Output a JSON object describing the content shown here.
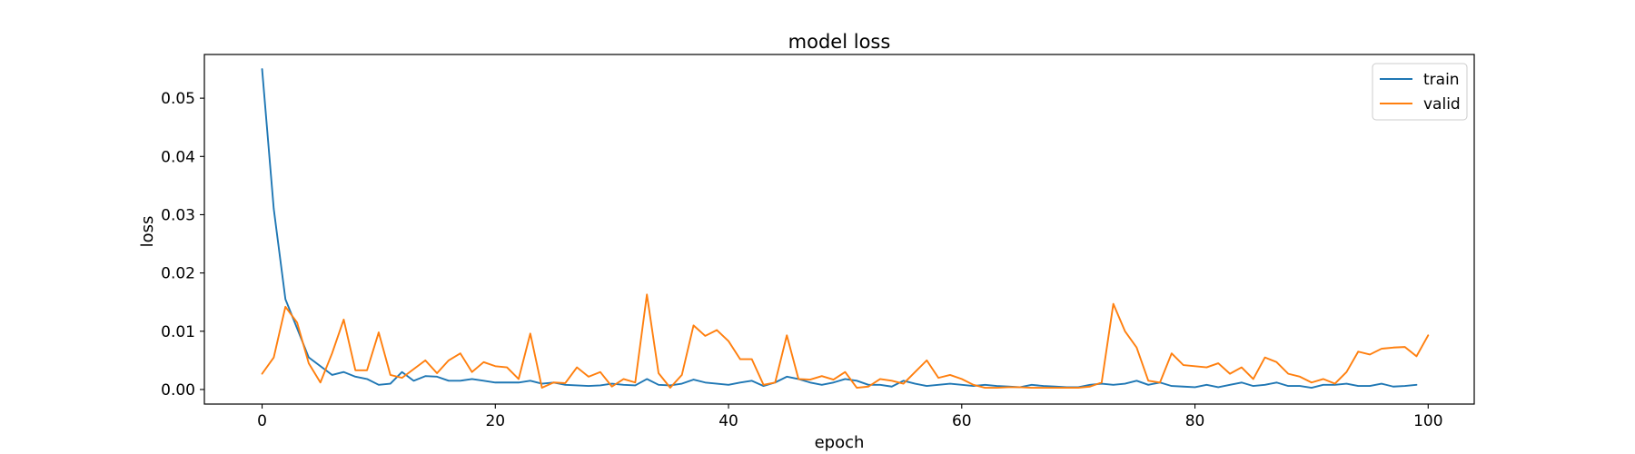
{
  "chart_data": {
    "type": "line",
    "title": "model loss",
    "xlabel": "epoch",
    "ylabel": "loss",
    "xlim": [
      -4.95,
      103.95
    ],
    "ylim": [
      -0.0025,
      0.0575
    ],
    "xticks": [
      0,
      20,
      40,
      60,
      80,
      100
    ],
    "yticks": [
      0.0,
      0.01,
      0.02,
      0.03,
      0.04,
      0.05
    ],
    "xtick_labels": [
      "0",
      "20",
      "40",
      "60",
      "80",
      "100"
    ],
    "ytick_labels": [
      "0.00",
      "0.01",
      "0.02",
      "0.03",
      "0.04",
      "0.05"
    ],
    "grid": false,
    "legend_position": "top-right",
    "series": [
      {
        "name": "train",
        "color": "#1f77b4",
        "values": [
          0.055,
          0.031,
          0.0155,
          0.0105,
          0.0055,
          0.004,
          0.0025,
          0.003,
          0.0022,
          0.0018,
          0.0008,
          0.001,
          0.003,
          0.0015,
          0.0023,
          0.0022,
          0.0015,
          0.0015,
          0.0018,
          0.0015,
          0.0012,
          0.0012,
          0.0012,
          0.0015,
          0.001,
          0.0012,
          0.0008,
          0.0007,
          0.0006,
          0.0007,
          0.001,
          0.0008,
          0.0007,
          0.0018,
          0.0008,
          0.0007,
          0.001,
          0.0017,
          0.0012,
          0.001,
          0.0008,
          0.0012,
          0.0015,
          0.0006,
          0.0012,
          0.0022,
          0.0018,
          0.0012,
          0.0008,
          0.0012,
          0.0018,
          0.0015,
          0.0008,
          0.0008,
          0.0005,
          0.0015,
          0.001,
          0.0006,
          0.0008,
          0.001,
          0.0008,
          0.0006,
          0.0008,
          0.0006,
          0.0005,
          0.0004,
          0.0008,
          0.0006,
          0.0005,
          0.0004,
          0.0004,
          0.0008,
          0.001,
          0.0008,
          0.001,
          0.0015,
          0.0008,
          0.0012,
          0.0006,
          0.0005,
          0.0004,
          0.0008,
          0.0004,
          0.0008,
          0.0012,
          0.0006,
          0.0008,
          0.0012,
          0.0006,
          0.0006,
          0.0003,
          0.0008,
          0.0008,
          0.001,
          0.0006,
          0.0006,
          0.001,
          0.0005,
          0.0006,
          0.0008
        ]
      },
      {
        "name": "valid",
        "color": "#ff7f0e",
        "values": [
          0.0027,
          0.0055,
          0.0142,
          0.0115,
          0.0045,
          0.0012,
          0.0062,
          0.012,
          0.0033,
          0.0033,
          0.0098,
          0.0025,
          0.002,
          0.0035,
          0.005,
          0.0028,
          0.005,
          0.0062,
          0.003,
          0.0047,
          0.004,
          0.0038,
          0.0018,
          0.0096,
          0.0003,
          0.0012,
          0.0011,
          0.0038,
          0.0022,
          0.003,
          0.0005,
          0.0018,
          0.0012,
          0.0163,
          0.0028,
          0.0003,
          0.0025,
          0.011,
          0.0092,
          0.0102,
          0.0083,
          0.0052,
          0.0052,
          0.0008,
          0.0012,
          0.0093,
          0.0018,
          0.0017,
          0.0023,
          0.0017,
          0.003,
          0.0003,
          0.0005,
          0.0018,
          0.0015,
          0.001,
          0.003,
          0.005,
          0.002,
          0.0025,
          0.0018,
          0.0008,
          0.0003,
          0.0003,
          0.0004,
          0.0004,
          0.0003,
          0.0003,
          0.0003,
          0.0003,
          0.0003,
          0.0005,
          0.0012,
          0.0147,
          0.01,
          0.0072,
          0.0015,
          0.0012,
          0.0062,
          0.0042,
          0.004,
          0.0038,
          0.0045,
          0.0027,
          0.0038,
          0.0018,
          0.0055,
          0.0047,
          0.0027,
          0.0022,
          0.0012,
          0.0018,
          0.001,
          0.003,
          0.0065,
          0.006,
          0.007,
          0.0072,
          0.0073,
          0.0057,
          0.0093
        ]
      }
    ]
  }
}
